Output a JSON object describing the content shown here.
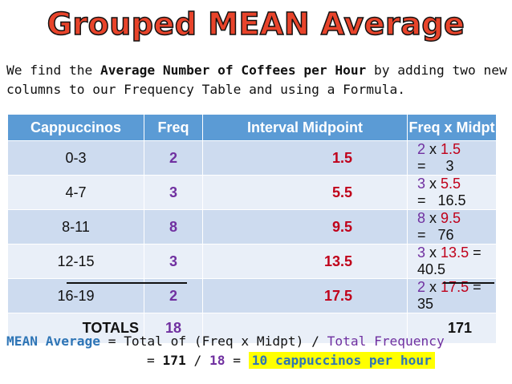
{
  "title": "Grouped MEAN Average",
  "intro": {
    "part1": "We find the ",
    "bold1": "Average Number of Coffees per Hour",
    "part2": " by adding two new columns to our Frequency Table and using a Formula."
  },
  "table": {
    "headers": [
      "Cappuccinos",
      "Freq",
      "Interval Midpoint",
      "Freq x Midpt"
    ],
    "rows": [
      {
        "interval": "0-3",
        "freq": "2",
        "midpoint": "1.5",
        "f": "2",
        "x": "x",
        "m": "1.5",
        "eq": "=",
        "product": "3"
      },
      {
        "interval": "4-7",
        "freq": "3",
        "midpoint": "5.5",
        "f": "3",
        "x": "x",
        "m": "5.5",
        "eq": "=",
        "product": "16.5"
      },
      {
        "interval": "8-11",
        "freq": "8",
        "midpoint": "9.5",
        "f": "8",
        "x": "x",
        "m": "9.5",
        "eq": "=",
        "product": "76"
      },
      {
        "interval": "12-15",
        "freq": "3",
        "midpoint": "13.5",
        "f": "3",
        "x": "x",
        "m": "13.5",
        "eq": "=",
        "product": "40.5"
      },
      {
        "interval": "16-19",
        "freq": "2",
        "midpoint": "17.5",
        "f": "2",
        "x": "x",
        "m": "17.5",
        "eq": "=",
        "product": "35"
      }
    ],
    "totals": {
      "label": "TOTALS",
      "freq": "18",
      "product": "171"
    }
  },
  "formula": {
    "line1_a": "MEAN Average",
    "line1_b": " = Total of (Freq x Midpt) / ",
    "line1_c": "Total Frequency",
    "line2_prefix": "= ",
    "line2_total": "171",
    "line2_slash": " / ",
    "line2_freq": "18",
    "line2_eq": " = ",
    "result": "10 cappuccinos per hour"
  },
  "colors": {
    "title": "#e8442b",
    "header_bg": "#5b9bd5",
    "freq": "#7030a0",
    "midpoint": "#c0001a",
    "accent": "#2e75b6",
    "highlight": "#ffff00"
  }
}
